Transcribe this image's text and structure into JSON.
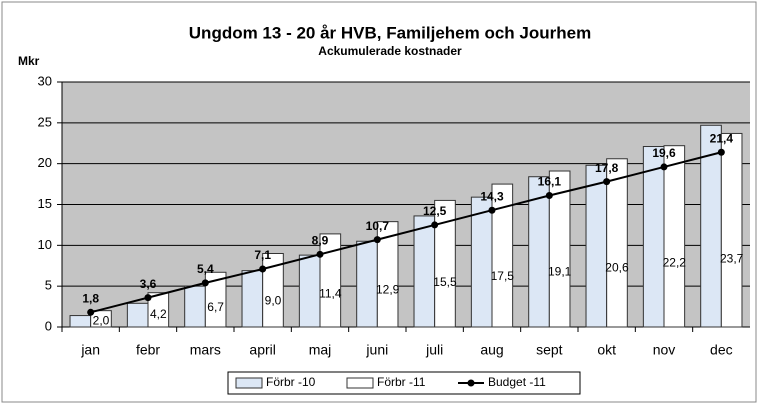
{
  "chart_data": {
    "type": "bar",
    "title": "Ungdom 13 - 20 år HVB, Familjehem och Jourhem",
    "subtitle": "Ackumulerade kostnader",
    "y_label": "Mkr",
    "categories": [
      "jan",
      "febr",
      "mars",
      "april",
      "maj",
      "juni",
      "juli",
      "aug",
      "sept",
      "okt",
      "nov",
      "dec"
    ],
    "series": [
      {
        "name": "Förbr -10",
        "color": "#dce7f5",
        "values": [
          1.4,
          2.9,
          5.0,
          6.9,
          8.8,
          10.5,
          13.6,
          15.9,
          18.4,
          19.8,
          22.1,
          24.7
        ]
      },
      {
        "name": "Förbr -11",
        "color": "#ffffff",
        "values": [
          2.0,
          4.2,
          6.7,
          9.0,
          11.4,
          12.9,
          15.5,
          17.5,
          19.1,
          20.6,
          22.2,
          23.7
        ],
        "value_labels": [
          "2,0",
          "4,2",
          "6,7",
          "9,0",
          "11,4",
          "12,9",
          "15,5",
          "17,5",
          "19,1",
          "20,6",
          "22,2",
          "23,7"
        ]
      },
      {
        "name": "Budget -11",
        "type": "line",
        "color": "#000000",
        "values": [
          1.8,
          3.6,
          5.4,
          7.1,
          8.9,
          10.7,
          12.5,
          14.3,
          16.1,
          17.8,
          19.6,
          21.4
        ],
        "value_labels": [
          "1,8",
          "3,6",
          "5,4",
          "7,1",
          "8,9",
          "10,7",
          "12,5",
          "14,3",
          "16,1",
          "17,8",
          "19,6",
          "21,4"
        ]
      }
    ],
    "ylim": [
      0,
      30
    ],
    "yticks": [
      0,
      5,
      10,
      15,
      20,
      25,
      30
    ],
    "grid": true,
    "legend": "bottom"
  }
}
